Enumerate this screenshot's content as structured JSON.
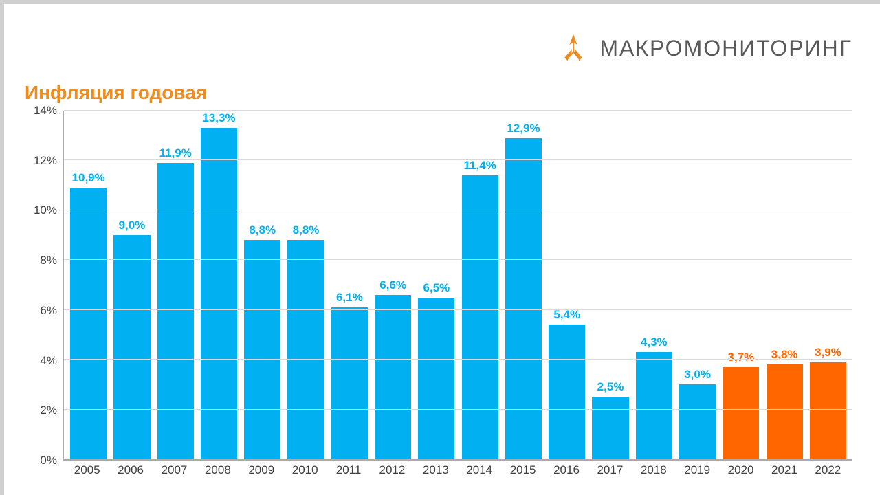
{
  "brand": {
    "name": "МАКРОМОНИТОРИНГ",
    "color": "#595959",
    "icon_color": "#f08b1e"
  },
  "title": {
    "text": "Инфляция годовая",
    "color": "#f08b1e"
  },
  "chart": {
    "type": "bar",
    "background_color": "#ffffff",
    "grid_color": "#d9d9d9",
    "axis_color": "#aaaaaa",
    "tick_color": "#404040",
    "bar_width_ratio": 0.84,
    "y": {
      "min": 0,
      "max": 14,
      "step": 2,
      "suffix": "%"
    },
    "categories": [
      "2005",
      "2006",
      "2007",
      "2008",
      "2009",
      "2010",
      "2011",
      "2012",
      "2013",
      "2014",
      "2015",
      "2016",
      "2017",
      "2018",
      "2019",
      "2020",
      "2021",
      "2022"
    ],
    "series": [
      {
        "value": 10.9,
        "label": "10,9%",
        "color": "#00b0f0"
      },
      {
        "value": 9.0,
        "label": "9,0%",
        "color": "#00b0f0"
      },
      {
        "value": 11.9,
        "label": "11,9%",
        "color": "#00b0f0"
      },
      {
        "value": 13.3,
        "label": "13,3%",
        "color": "#00b0f0"
      },
      {
        "value": 8.8,
        "label": "8,8%",
        "color": "#00b0f0"
      },
      {
        "value": 8.8,
        "label": "8,8%",
        "color": "#00b0f0"
      },
      {
        "value": 6.1,
        "label": "6,1%",
        "color": "#00b0f0"
      },
      {
        "value": 6.6,
        "label": "6,6%",
        "color": "#00b0f0"
      },
      {
        "value": 6.5,
        "label": "6,5%",
        "color": "#00b0f0"
      },
      {
        "value": 11.4,
        "label": "11,4%",
        "color": "#00b0f0"
      },
      {
        "value": 12.9,
        "label": "12,9%",
        "color": "#00b0f0"
      },
      {
        "value": 5.4,
        "label": "5,4%",
        "color": "#00b0f0"
      },
      {
        "value": 2.5,
        "label": "2,5%",
        "color": "#00b0f0"
      },
      {
        "value": 4.3,
        "label": "4,3%",
        "color": "#00b0f0"
      },
      {
        "value": 3.0,
        "label": "3,0%",
        "color": "#00b0f0"
      },
      {
        "value": 3.7,
        "label": "3,7%",
        "color": "#ff6600"
      },
      {
        "value": 3.8,
        "label": "3,8%",
        "color": "#ff6600"
      },
      {
        "value": 3.9,
        "label": "3,9%",
        "color": "#ff6600"
      }
    ],
    "label_fontsize": 17,
    "tick_fontsize": 17
  }
}
